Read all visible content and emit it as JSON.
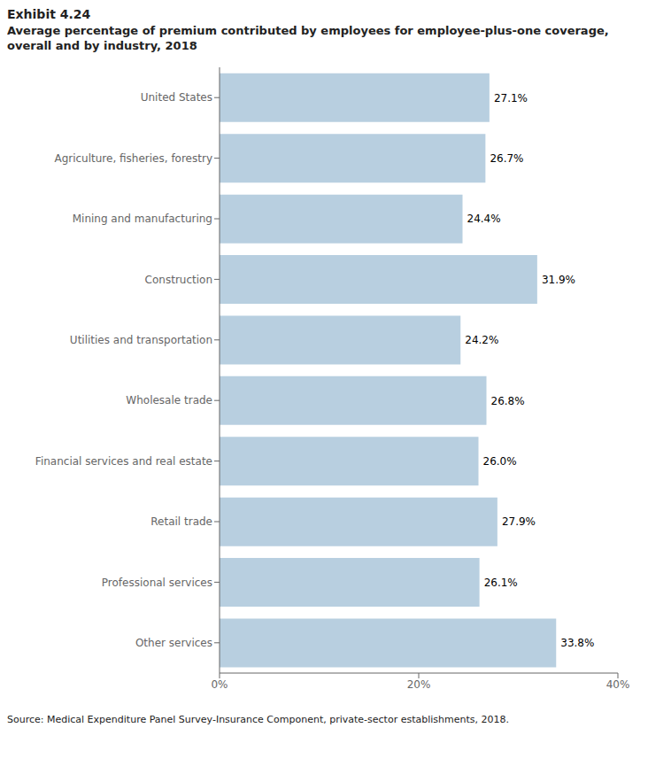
{
  "chart_data": {
    "type": "bar",
    "title": "Exhibit 4.24",
    "subtitle": [
      "Average percentage of premium contributed by employees for employee-plus-one coverage,",
      "overall and by industry, 2018"
    ],
    "annotations": [
      "Source: Medical Expenditure Panel Survey-Insurance Component, private-sector establishments, 2018."
    ],
    "orientation": "horizontal",
    "categories": [
      "Other services",
      "Professional services",
      "Retail trade",
      "Financial services and real estate",
      "Wholesale trade",
      "Utilities and transportation",
      "Construction",
      "Mining and manufacturing",
      "Agriculture, fisheries, forestry",
      "United States"
    ],
    "values": [
      33.8,
      26.1,
      27.9,
      26.0,
      26.8,
      24.2,
      31.9,
      24.4,
      26.7,
      27.1
    ],
    "value_labels": [
      "33.8%",
      "26.1%",
      "27.9%",
      "26.0%",
      "26.8%",
      "24.2%",
      "31.9%",
      "24.4%",
      "26.7%",
      "27.1%"
    ],
    "data_labels": true,
    "color": "#b8cfe0",
    "xlim": [
      0,
      40
    ],
    "xticks": [
      {
        "value": 0,
        "label": "0%"
      },
      {
        "value": 20,
        "label": "20%"
      },
      {
        "value": 40,
        "label": "40%"
      }
    ],
    "grid": false
  }
}
